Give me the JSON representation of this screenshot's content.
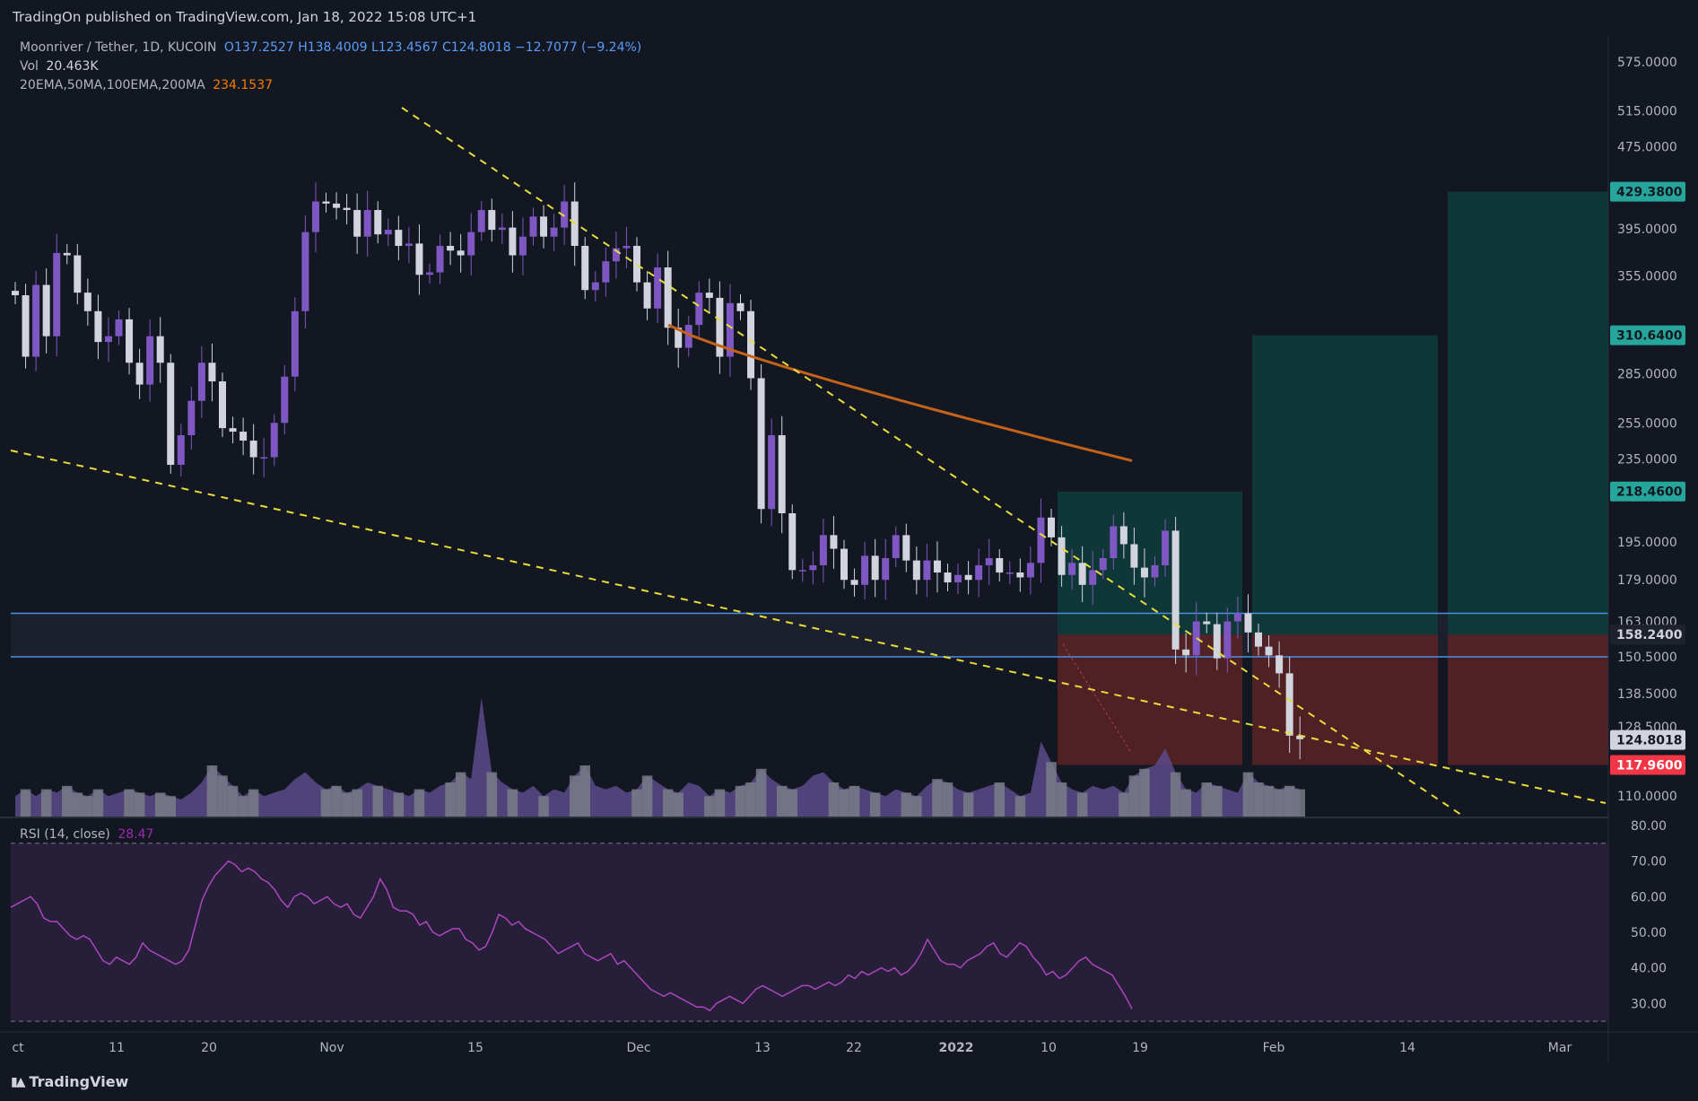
{
  "header": {
    "published": "TradingOn published on TradingView.com, Jan 18, 2022 15:08 UTC+1"
  },
  "legend": {
    "symbol": "Moonriver / Tether, 1D, KUCOIN",
    "ohlc": "O137.2527 H138.4009 L123.4567 C124.8018 −12.7077 (−9.24%)",
    "vol_label": "Vol",
    "vol_value": "20.463K",
    "ma_label": "20EMA,50MA,100EMA,200MA",
    "ma_value": "234.1537",
    "rsi_label": "RSI (14, close)",
    "rsi_value": "28.47"
  },
  "footer": {
    "brand": "TradingView"
  },
  "colors": {
    "background": "#131722",
    "bull": "#7e57c2",
    "bear": "#d1d4dc",
    "ma": "#c4621a",
    "trendline": "#e8dc3a",
    "hline": "#4a90e2",
    "target_zone": "#113b3b",
    "stop_zone": "#5a2326",
    "rsi": "#ab47bc",
    "rsi_band": "#2a1f3d",
    "tag_green": "#26a69a",
    "tag_red": "#f23645"
  },
  "chart_data": [
    {
      "type": "candlestick",
      "title": "Moonriver / Tether, 1D, KUCOIN",
      "x_tick_labels": [
        "ct",
        "11",
        "20",
        "Nov",
        "15",
        "Dec",
        "13",
        "22",
        "2022",
        "10",
        "19",
        "Feb",
        "14",
        "Mar"
      ],
      "y_tick_labels": [
        "575.0000",
        "515.0000",
        "475.0000",
        "395.0000",
        "355.0000",
        "285.0000",
        "255.0000",
        "235.0000",
        "195.0000",
        "179.0000",
        "163.0000",
        "150.5000",
        "138.5000",
        "128.5000",
        "110.0000"
      ],
      "y_scale": "log",
      "y_range": [
        105,
        610
      ],
      "price_tags": [
        {
          "value": "429.3800",
          "style": "green"
        },
        {
          "value": "310.6400",
          "style": "green"
        },
        {
          "value": "218.4600",
          "style": "green"
        },
        {
          "value": "158.2400",
          "style": "dark"
        },
        {
          "value": "124.8018",
          "style": "light"
        },
        {
          "value": "117.9600",
          "style": "red"
        }
      ],
      "horizontal_levels": [
        166,
        150.5
      ],
      "moving_average_200": {
        "start_value": 318,
        "end_value": 234.1537
      },
      "positions": [
        {
          "entry": 158.24,
          "target": 218.46,
          "stop": 117.96
        },
        {
          "entry": 158.24,
          "target": 310.64,
          "stop": 117.96
        },
        {
          "entry": 158.24,
          "target": 429.38,
          "stop": 117.96
        }
      ],
      "closes": [
        340,
        296,
        348,
        310,
        374,
        372,
        342,
        328,
        306,
        310,
        322,
        292,
        278,
        310,
        292,
        232,
        248,
        268,
        292,
        280,
        252,
        250,
        245,
        236,
        236,
        255,
        283,
        328,
        392,
        420,
        418,
        414,
        412,
        388,
        412,
        390,
        394,
        380,
        382,
        356,
        358,
        380,
        376,
        372,
        392,
        412,
        394,
        396,
        372,
        388,
        406,
        388,
        396,
        420,
        380,
        344,
        350,
        367,
        378,
        380,
        350,
        330,
        362,
        316,
        302,
        318,
        342,
        338,
        296,
        334,
        328,
        282,
        210,
        248,
        208,
        183,
        183,
        185,
        198,
        192,
        179,
        177,
        189,
        179,
        188,
        198,
        187,
        179,
        187,
        182,
        178,
        181,
        179,
        185,
        188,
        182,
        182,
        180,
        186,
        206,
        197,
        181,
        186,
        177,
        183,
        188,
        202,
        194,
        184,
        180,
        185,
        200,
        153,
        151,
        163,
        162,
        150,
        163,
        166,
        159,
        154,
        151,
        145,
        126,
        125
      ],
      "volume_relative": [
        0.6,
        0.8,
        0.6,
        0.8,
        0.7,
        0.9,
        0.7,
        0.6,
        0.8,
        0.6,
        0.7,
        0.8,
        0.7,
        0.6,
        0.7,
        0.6,
        0.5,
        0.7,
        1.0,
        1.5,
        1.2,
        0.9,
        0.6,
        0.8,
        0.6,
        0.7,
        0.8,
        1.1,
        1.3,
        1.0,
        0.8,
        0.9,
        0.7,
        0.8,
        1.0,
        0.9,
        0.8,
        0.7,
        0.6,
        0.8,
        0.7,
        0.9,
        1.0,
        1.3,
        1.1,
        3.5,
        1.3,
        1.0,
        0.8,
        0.7,
        0.9,
        0.6,
        0.8,
        0.7,
        1.2,
        1.5,
        0.9,
        0.8,
        0.9,
        0.7,
        0.8,
        1.2,
        1.0,
        0.8,
        0.7,
        1.0,
        0.9,
        0.6,
        0.8,
        0.7,
        0.9,
        1.0,
        1.4,
        1.1,
        0.9,
        0.8,
        0.9,
        1.2,
        1.3,
        1.0,
        0.8,
        0.9,
        0.8,
        0.7,
        0.6,
        0.8,
        0.7,
        0.6,
        0.9,
        1.1,
        1.0,
        0.8,
        0.7,
        0.8,
        0.9,
        1.0,
        0.8,
        0.6,
        0.7,
        2.2,
        1.6,
        1.0,
        0.8,
        0.7,
        0.9,
        0.8,
        0.9,
        0.7,
        1.2,
        1.4,
        1.5,
        2.0,
        1.3,
        0.8,
        0.7,
        1.0,
        0.9,
        0.8,
        0.7,
        1.3,
        1.0,
        0.9,
        0.8,
        0.9,
        0.8
      ]
    },
    {
      "type": "line",
      "title": "RSI (14, close)",
      "y_tick_labels": [
        "80.00",
        "70.00",
        "60.00",
        "50.00",
        "40.00",
        "30.00"
      ],
      "y_range": [
        22,
        82
      ],
      "bands": [
        75,
        25
      ],
      "values": [
        57,
        58,
        59,
        60,
        58,
        54,
        53,
        53,
        51,
        49,
        48,
        49,
        48,
        45,
        42,
        41,
        43,
        42,
        41,
        43,
        47,
        45,
        44,
        43,
        42,
        41,
        42,
        45,
        52,
        59,
        63,
        66,
        68,
        70,
        69,
        67,
        68,
        67,
        65,
        64,
        62,
        59,
        57,
        60,
        61,
        60,
        58,
        59,
        60,
        58,
        57,
        58,
        55,
        54,
        57,
        60,
        65,
        62,
        57,
        56,
        56,
        55,
        52,
        53,
        50,
        49,
        50,
        51,
        51,
        48,
        47,
        45,
        46,
        50,
        55,
        54,
        52,
        53,
        51,
        50,
        49,
        48,
        46,
        44,
        45,
        46,
        47,
        44,
        43,
        42,
        43,
        44,
        41,
        42,
        40,
        38,
        36,
        34,
        33,
        32,
        33,
        32,
        31,
        30,
        29,
        29,
        28,
        30,
        31,
        32,
        31,
        30,
        32,
        34,
        35,
        34,
        33,
        32,
        33,
        34,
        35,
        35,
        34,
        35,
        36,
        35,
        36,
        38,
        37,
        39,
        38,
        39,
        40,
        39,
        40,
        38,
        39,
        41,
        44,
        48,
        45,
        42,
        41,
        41,
        40,
        42,
        43,
        44,
        46,
        47,
        44,
        43,
        45,
        47,
        46,
        43,
        41,
        38,
        39,
        37,
        38,
        40,
        42,
        43,
        41,
        40,
        39,
        38,
        35,
        32,
        28.47
      ]
    }
  ]
}
